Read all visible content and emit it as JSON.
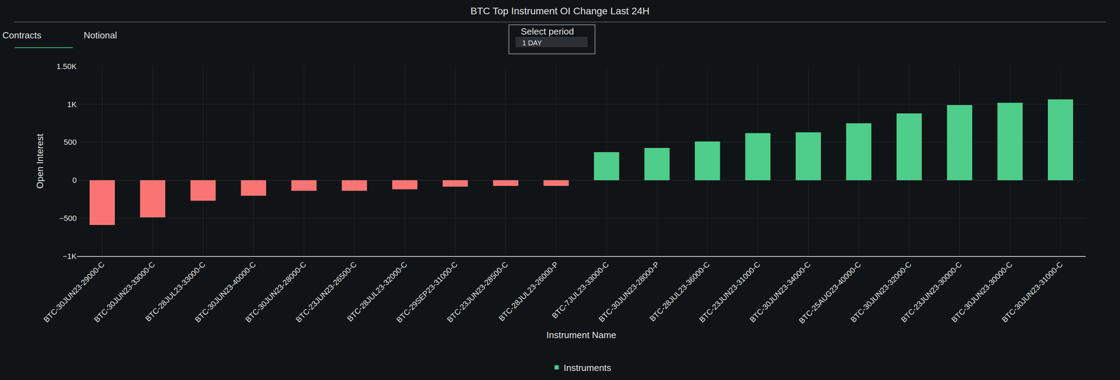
{
  "chart_data": {
    "type": "bar",
    "title": "BTC Top Instrument OI Change Last 24H",
    "annotations": [
      "Contracts",
      "Notional",
      "Select period",
      "1 DAY"
    ],
    "x_label": "Instrument Name",
    "y_label": "Open Interest",
    "categories": [
      "BTC-30JUN23-29000-C",
      "BTC-30JUN23-33000-C",
      "BTC-28JUL23-33000-C",
      "BTC-30JUN23-40000-C",
      "BTC-30JUN23-28000-C",
      "BTC-23JUN23-26500-C",
      "BTC-28JUL23-32000-C",
      "BTC-29SEP23-31000-C",
      "BTC-23JUN23-28500-C",
      "BTC-28JUL23-26000-P",
      "BTC-7JUL23-33000-C",
      "BTC-30JUN23-28000-P",
      "BTC-28JUL23-36000-C",
      "BTC-23JUN23-31000-C",
      "BTC-30JUN23-34000-C",
      "BTC-25AUG23-40000-C",
      "BTC-30JUN23-32000-C",
      "BTC-23JUN23-30000-C",
      "BTC-30JUN23-30000-C",
      "BTC-30JUN23-31000-C"
    ],
    "series": [
      {
        "name": "Instruments",
        "color": "#4fcd8a",
        "values": [
          -590,
          -490,
          -270,
          -205,
          -140,
          -140,
          -120,
          -85,
          -75,
          -75,
          370,
          425,
          510,
          620,
          630,
          750,
          880,
          990,
          1020,
          1065
        ],
        "colors": [
          "#fb7474",
          "#fb7474",
          "#fb7474",
          "#fb7474",
          "#fb7474",
          "#fb7474",
          "#fb7474",
          "#fb7474",
          "#fb7474",
          "#fb7474",
          "#4fcd8a",
          "#4fcd8a",
          "#4fcd8a",
          "#4fcd8a",
          "#4fcd8a",
          "#4fcd8a",
          "#4fcd8a",
          "#4fcd8a",
          "#4fcd8a",
          "#4fcd8a"
        ]
      }
    ],
    "ylim": [
      -1000,
      1500
    ],
    "yticks": [
      {
        "value": -1000,
        "label": "−1K"
      },
      {
        "value": -500,
        "label": "−500"
      },
      0,
      500,
      {
        "value": 1000,
        "label": "1K"
      },
      {
        "value": 1500,
        "label": "1.50K"
      }
    ],
    "grid": true,
    "legend": "bottom"
  }
}
